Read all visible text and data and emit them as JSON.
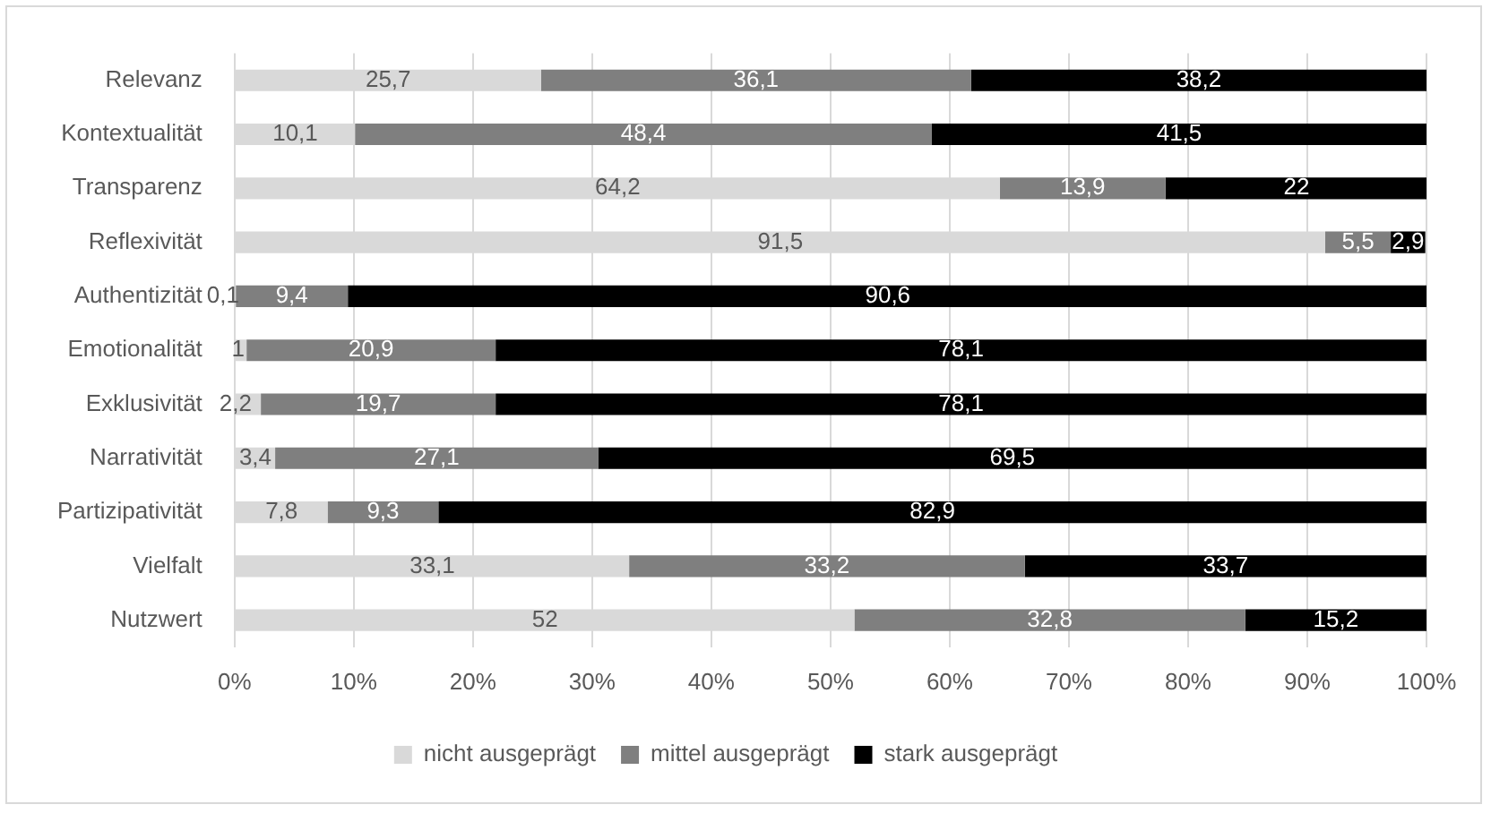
{
  "chart_data": {
    "type": "bar",
    "orientation": "horizontal",
    "stacked": true,
    "categories": [
      "Relevanz",
      "Kontextualität",
      "Transparenz",
      "Reflexivität",
      "Authentizität",
      "Emotionalität",
      "Exklusivität",
      "Narrativität",
      "Partizipativität",
      "Vielfalt",
      "Nutzwert"
    ],
    "series": [
      {
        "name": "nicht ausgeprägt",
        "color": "#d9d9d9",
        "values": [
          25.7,
          10.1,
          64.2,
          91.5,
          0.1,
          1,
          2.2,
          3.4,
          7.8,
          33.1,
          52
        ],
        "value_labels": [
          "25,7",
          "10,1",
          "64,2",
          "91,5",
          "0,1",
          "1",
          "2,2",
          "3,4",
          "7,8",
          "33,1",
          "52"
        ]
      },
      {
        "name": "mittel ausgeprägt",
        "color": "#7f7f7f",
        "values": [
          36.1,
          48.4,
          13.9,
          5.5,
          9.4,
          20.9,
          19.7,
          27.1,
          9.3,
          33.2,
          32.8
        ],
        "value_labels": [
          "36,1",
          "48,4",
          "13,9",
          "5,5",
          "9,4",
          "20,9",
          "19,7",
          "27,1",
          "9,3",
          "33,2",
          "32,8"
        ]
      },
      {
        "name": "stark ausgeprägt",
        "color": "#000000",
        "values": [
          38.2,
          41.5,
          22,
          2.9,
          90.6,
          78.1,
          78.1,
          69.5,
          82.9,
          33.7,
          15.2
        ],
        "value_labels": [
          "38,2",
          "41,5",
          "22",
          "2,9",
          "90,6",
          "78,1",
          "78,1",
          "69,5",
          "82,9",
          "33,7",
          "15,2"
        ]
      }
    ],
    "xlim": [
      0,
      100
    ],
    "xticks": [
      {
        "value": 0,
        "label": "0%"
      },
      {
        "value": 10,
        "label": "10%"
      },
      {
        "value": 20,
        "label": "20%"
      },
      {
        "value": 30,
        "label": "30%"
      },
      {
        "value": 40,
        "label": "40%"
      },
      {
        "value": 50,
        "label": "50%"
      },
      {
        "value": 60,
        "label": "60%"
      },
      {
        "value": 70,
        "label": "70%"
      },
      {
        "value": 80,
        "label": "80%"
      },
      {
        "value": 90,
        "label": "90%"
      },
      {
        "value": 100,
        "label": "100%"
      }
    ],
    "grid": "x",
    "legend": "bottom"
  }
}
